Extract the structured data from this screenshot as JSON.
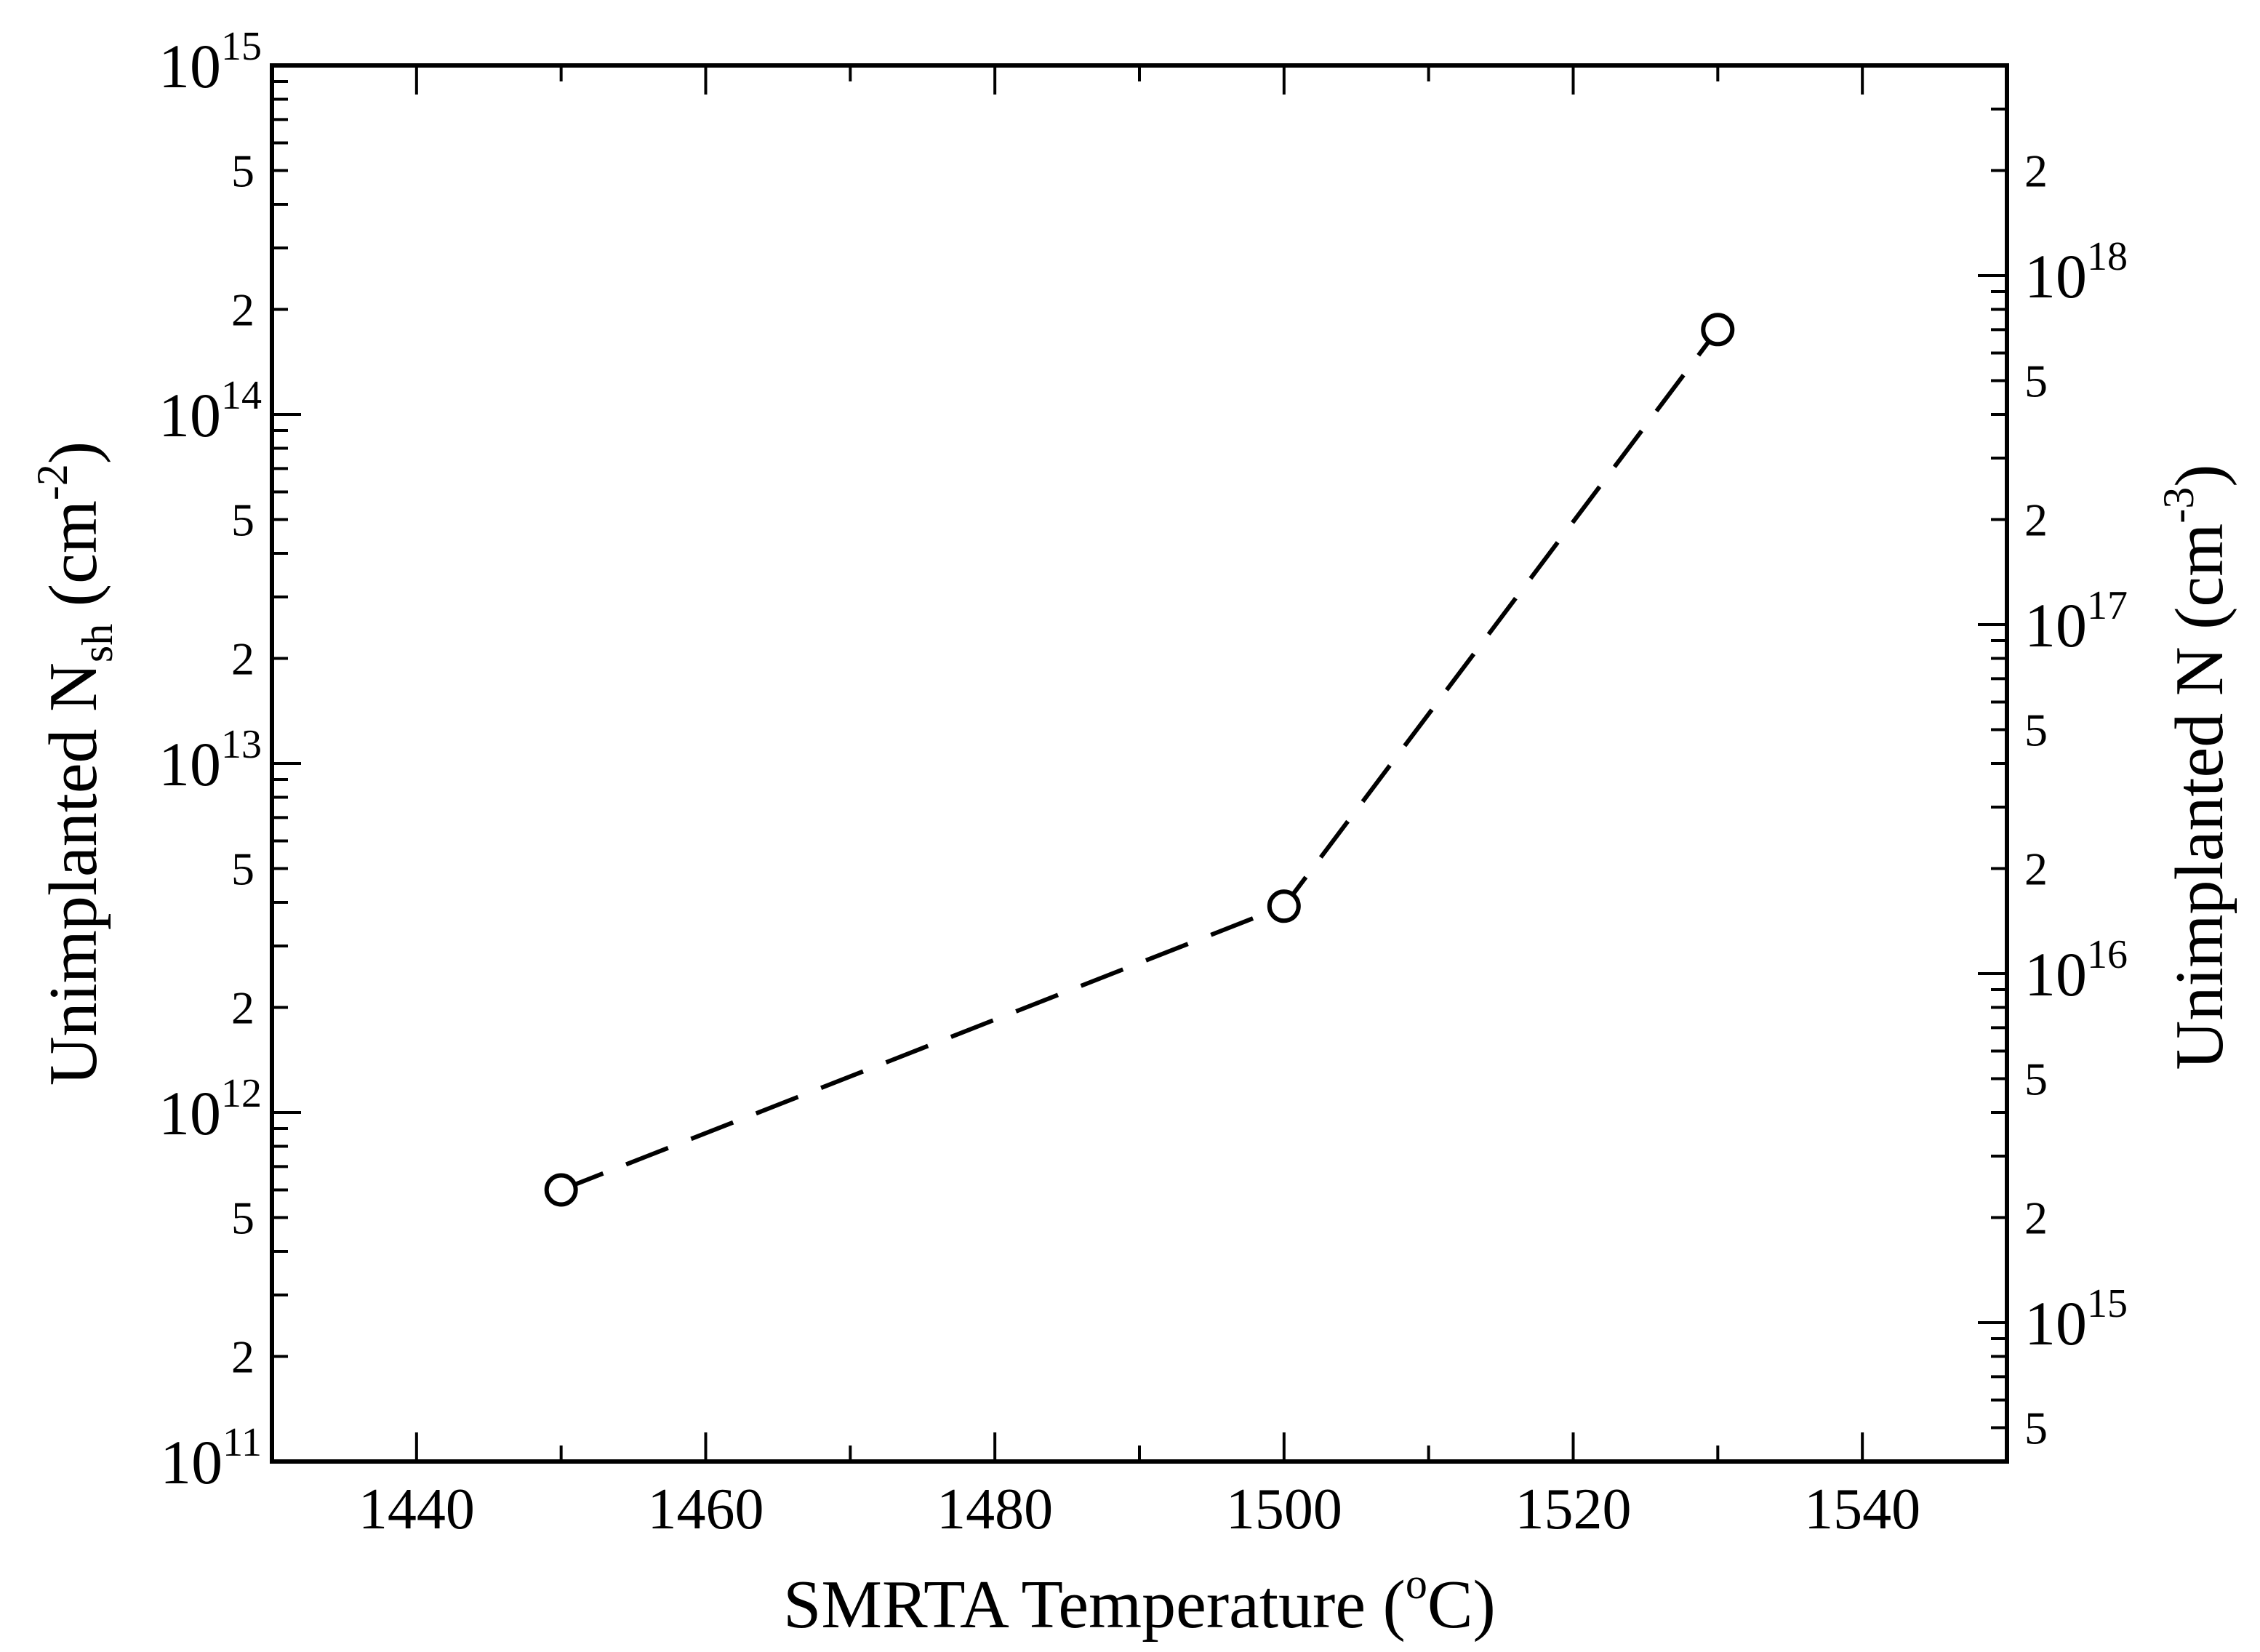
{
  "chart_data": {
    "type": "line",
    "xlabel": {
      "main": "SMRTA Temperature (",
      "sup": "o",
      "tail": "C)"
    },
    "ylabel_left": {
      "main": "Unimplanted N",
      "sub": "sh",
      "mid": " (cm",
      "sup": "-2",
      "tail": ")"
    },
    "ylabel_right": {
      "main": "Unimplanted N (cm",
      "sup": "-3",
      "tail": ")"
    },
    "xlim": [
      1430,
      1550
    ],
    "x_ticks": [
      1440,
      1460,
      1480,
      1500,
      1520,
      1540
    ],
    "y_left_log_range": [
      100000000000.0,
      1000000000000000.0
    ],
    "y_left_decade_labels": [
      {
        "base": "10",
        "exp": "11"
      },
      {
        "base": "10",
        "exp": "12"
      },
      {
        "base": "10",
        "exp": "13"
      },
      {
        "base": "10",
        "exp": "14"
      },
      {
        "base": "10",
        "exp": "15"
      }
    ],
    "y_left_minor_labels": [
      "2",
      "5"
    ],
    "y_right_log_range": [
      400000000000000.0,
      4e+18
    ],
    "y_right_decade_labels": [
      {
        "base": "10",
        "exp": "15"
      },
      {
        "base": "10",
        "exp": "16"
      },
      {
        "base": "10",
        "exp": "17"
      },
      {
        "base": "10",
        "exp": "18"
      }
    ],
    "y_right_minor_labels": [
      "2",
      "5"
    ],
    "line_style": "dashed",
    "marker": "open-circle",
    "series": [
      {
        "x": [
          1450,
          1500,
          1530
        ],
        "y": [
          600000000000.0,
          3900000000000.0,
          175000000000000.0
        ]
      }
    ]
  }
}
